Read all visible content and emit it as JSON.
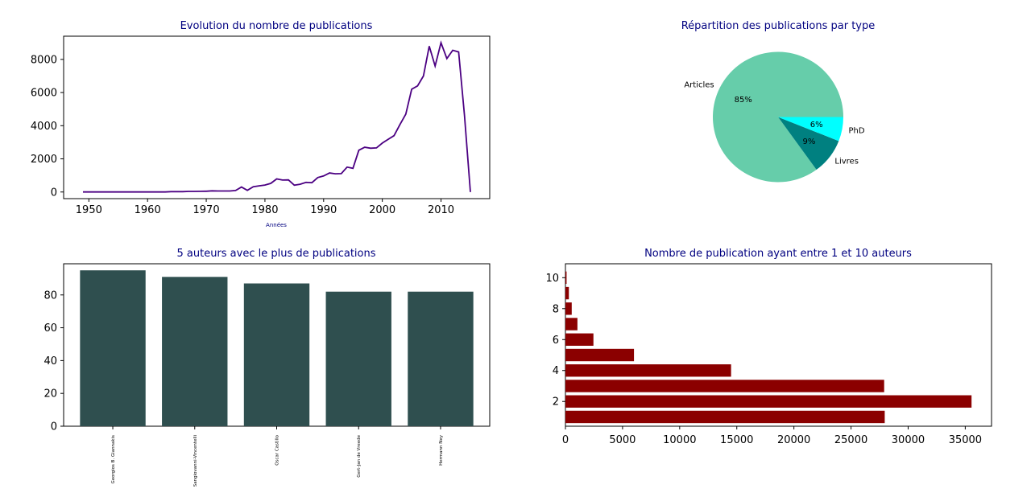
{
  "chart_data": [
    {
      "id": "line",
      "type": "line",
      "title": "Evolution du nombre de publications",
      "xlabel": "Années",
      "ylabel": "",
      "xlim": [
        1945.7,
        2018.3
      ],
      "ylim": [
        -400,
        9400
      ],
      "xticks": [
        1950,
        1960,
        1970,
        1980,
        1990,
        2000,
        2010
      ],
      "yticks": [
        0,
        2000,
        4000,
        6000,
        8000
      ],
      "x": [
        1949,
        1950,
        1951,
        1952,
        1953,
        1954,
        1955,
        1956,
        1957,
        1958,
        1959,
        1960,
        1961,
        1962,
        1963,
        1964,
        1965,
        1966,
        1967,
        1968,
        1969,
        1970,
        1971,
        1972,
        1973,
        1974,
        1975,
        1976,
        1977,
        1978,
        1979,
        1980,
        1981,
        1982,
        1983,
        1984,
        1985,
        1986,
        1987,
        1988,
        1989,
        1990,
        1991,
        1992,
        1993,
        1994,
        1995,
        1996,
        1997,
        1998,
        1999,
        2000,
        2001,
        2002,
        2003,
        2004,
        2005,
        2006,
        2007,
        2008,
        2009,
        2010,
        2011,
        2012,
        2013,
        2014,
        2015
      ],
      "series": [
        {
          "color": "#4b0082",
          "values": [
            5,
            5,
            5,
            5,
            5,
            5,
            5,
            5,
            5,
            5,
            5,
            5,
            5,
            5,
            5,
            20,
            20,
            20,
            35,
            35,
            40,
            45,
            70,
            60,
            60,
            60,
            90,
            300,
            100,
            320,
            370,
            420,
            520,
            790,
            720,
            730,
            410,
            470,
            580,
            560,
            870,
            970,
            1150,
            1100,
            1110,
            1500,
            1430,
            2520,
            2700,
            2640,
            2660,
            2950,
            3180,
            3400,
            4070,
            4700,
            6200,
            6400,
            7000,
            8800,
            7600,
            9000,
            8050,
            8550,
            8450,
            4600,
            0
          ]
        }
      ]
    },
    {
      "id": "pie",
      "type": "pie",
      "title": "Répartition des publications par type",
      "labels": [
        "Articles",
        "Livres",
        "PhD"
      ],
      "values": [
        85,
        9,
        6
      ],
      "pct_labels": [
        "85%",
        "9%",
        "6%"
      ],
      "colors": [
        "#66cdaa",
        "#008080",
        "#00ffff"
      ]
    },
    {
      "id": "bar",
      "type": "bar",
      "title": "5 auteurs avec le plus de publications",
      "categories": [
        "Georgios B. Giannakis",
        "Sangiovanni-Vincentelli",
        "Oscar Castillo",
        "Gert-Jan de Vreede",
        "Hermann Ney"
      ],
      "values": [
        95,
        91,
        87,
        82,
        82
      ],
      "ylim": [
        0,
        99
      ],
      "yticks": [
        0,
        20,
        40,
        60,
        80
      ],
      "color": "#2f4f4f"
    },
    {
      "id": "barh",
      "type": "bar",
      "orientation": "horizontal",
      "title": "Nombre de publication ayant entre 1 et 10 auteurs",
      "categories": [
        1,
        2,
        3,
        4,
        5,
        6,
        7,
        8,
        9,
        10
      ],
      "values": [
        27950,
        35550,
        27900,
        14500,
        6000,
        2450,
        1050,
        550,
        300,
        100
      ],
      "xlim": [
        0,
        37300
      ],
      "ylim": [
        0.4,
        10.9
      ],
      "xticks": [
        0,
        5000,
        10000,
        15000,
        20000,
        25000,
        30000,
        35000
      ],
      "yticks": [
        2,
        4,
        6,
        8,
        10
      ],
      "color": "#8b0000"
    }
  ],
  "styles": {
    "title_color": "#000080",
    "axis_color": "#000000"
  }
}
